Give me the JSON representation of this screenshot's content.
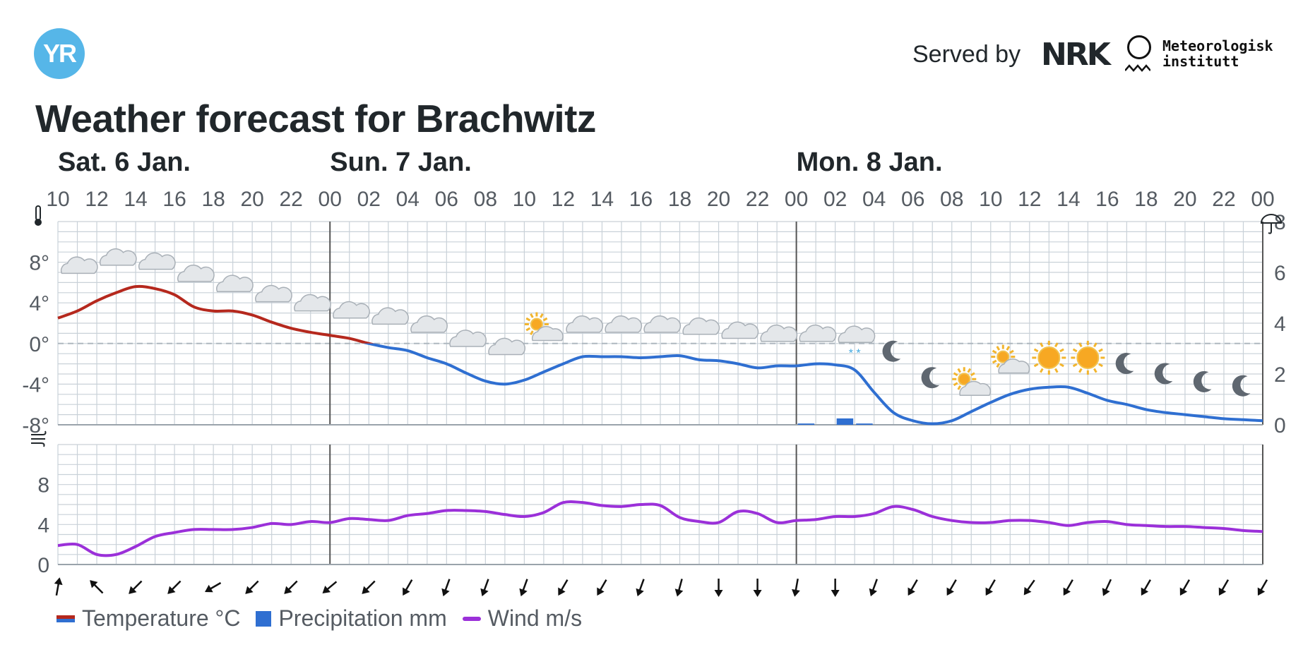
{
  "header": {
    "logo_text": "YR",
    "served_by": "Served by",
    "nrk_text": "NRK",
    "met_line1": "Meteorologisk",
    "met_line2": "institutt",
    "title": "Weather forecast for Brachwitz"
  },
  "colors": {
    "brand": "#56b6e8",
    "temp_warm": "#b5281d",
    "temp_cold": "#2f6fd1",
    "precip": "#2f6fd1",
    "wind": "#9b30d9",
    "grid": "#c9d1d8"
  },
  "legend": {
    "temperature": "Temperature °C",
    "precipitation": "Precipitation mm",
    "wind": "Wind m/s"
  },
  "chart_data": {
    "type": "line",
    "days": [
      {
        "label": "Sat. 6 Jan.",
        "start_hour": 10
      },
      {
        "label": "Sun. 7 Jan.",
        "start_hour": 0
      },
      {
        "label": "Mon. 8 Jan.",
        "start_hour": 0
      }
    ],
    "x_unit": "hours from Sat. 6 Jan. 10:00",
    "x_range": [
      0,
      62
    ],
    "hour_ticks": [
      "10",
      "12",
      "14",
      "16",
      "18",
      "20",
      "22",
      "00",
      "02",
      "04",
      "06",
      "08",
      "10",
      "12",
      "14",
      "16",
      "18",
      "20",
      "22",
      "00",
      "02",
      "04",
      "06",
      "08",
      "10",
      "12",
      "14",
      "16",
      "18",
      "20",
      "22",
      "00"
    ],
    "temperature": {
      "ylabel_icon": "thermometer-icon",
      "ylim": [
        -8,
        12
      ],
      "yticks": [
        "8°",
        "4°",
        "0°",
        "-4°",
        "-8°"
      ],
      "ytick_values": [
        8,
        4,
        0,
        -4,
        -8
      ],
      "points": [
        [
          0,
          2.5
        ],
        [
          1,
          3.2
        ],
        [
          2,
          4.2
        ],
        [
          3,
          5.0
        ],
        [
          4,
          5.6
        ],
        [
          5,
          5.4
        ],
        [
          6,
          4.8
        ],
        [
          7,
          3.6
        ],
        [
          8,
          3.2
        ],
        [
          9,
          3.2
        ],
        [
          10,
          2.8
        ],
        [
          11,
          2.1
        ],
        [
          12,
          1.5
        ],
        [
          13,
          1.1
        ],
        [
          14,
          0.8
        ],
        [
          15,
          0.5
        ],
        [
          16,
          0.0
        ],
        [
          17,
          -0.4
        ],
        [
          18,
          -0.7
        ],
        [
          19,
          -1.4
        ],
        [
          20,
          -2.0
        ],
        [
          21,
          -2.9
        ],
        [
          22,
          -3.7
        ],
        [
          23,
          -4.0
        ],
        [
          24,
          -3.6
        ],
        [
          25,
          -2.8
        ],
        [
          26,
          -2.0
        ],
        [
          27,
          -1.3
        ],
        [
          28,
          -1.3
        ],
        [
          29,
          -1.3
        ],
        [
          30,
          -1.4
        ],
        [
          31,
          -1.3
        ],
        [
          32,
          -1.2
        ],
        [
          33,
          -1.6
        ],
        [
          34,
          -1.7
        ],
        [
          35,
          -2.0
        ],
        [
          36,
          -2.4
        ],
        [
          37,
          -2.2
        ],
        [
          38,
          -2.2
        ],
        [
          39,
          -2.0
        ],
        [
          40,
          -2.1
        ],
        [
          41,
          -2.6
        ],
        [
          42,
          -4.8
        ],
        [
          43,
          -6.8
        ],
        [
          44,
          -7.6
        ],
        [
          45,
          -7.9
        ],
        [
          46,
          -7.6
        ],
        [
          47,
          -6.7
        ],
        [
          48,
          -5.8
        ],
        [
          49,
          -5.0
        ],
        [
          50,
          -4.5
        ],
        [
          51,
          -4.3
        ],
        [
          52,
          -4.3
        ],
        [
          53,
          -4.9
        ],
        [
          54,
          -5.6
        ],
        [
          55,
          -6.0
        ],
        [
          56,
          -6.5
        ],
        [
          57,
          -6.8
        ],
        [
          58,
          -7.0
        ],
        [
          59,
          -7.2
        ],
        [
          60,
          -7.4
        ],
        [
          61,
          -7.5
        ],
        [
          62,
          -7.6
        ]
      ],
      "zero_line": true
    },
    "precipitation": {
      "ylabel_icon": "umbrella-icon",
      "ylim": [
        0,
        8
      ],
      "yticks": [
        "8",
        "6",
        "4",
        "2",
        "0"
      ],
      "ytick_values": [
        8,
        6,
        4,
        2,
        0
      ],
      "bars": [
        {
          "start": 38,
          "end": 39,
          "value": 0.05
        },
        {
          "start": 40,
          "end": 41,
          "value": 0.25
        },
        {
          "start": 41,
          "end": 42,
          "value": 0.05
        }
      ]
    },
    "weather_icons": [
      {
        "hour": 1,
        "temp": 7.6,
        "symbol": "cloudy"
      },
      {
        "hour": 3,
        "temp": 8.4,
        "symbol": "cloudy"
      },
      {
        "hour": 5,
        "temp": 8.0,
        "symbol": "cloudy"
      },
      {
        "hour": 7,
        "temp": 6.8,
        "symbol": "cloudy"
      },
      {
        "hour": 9,
        "temp": 5.8,
        "symbol": "cloudy"
      },
      {
        "hour": 11,
        "temp": 4.8,
        "symbol": "cloudy"
      },
      {
        "hour": 13,
        "temp": 3.9,
        "symbol": "cloudy"
      },
      {
        "hour": 15,
        "temp": 3.2,
        "symbol": "cloudy"
      },
      {
        "hour": 17,
        "temp": 2.6,
        "symbol": "cloudy"
      },
      {
        "hour": 19,
        "temp": 1.8,
        "symbol": "cloudy"
      },
      {
        "hour": 21,
        "temp": 0.4,
        "symbol": "cloudy"
      },
      {
        "hour": 23,
        "temp": -0.4,
        "symbol": "cloudy"
      },
      {
        "hour": 25,
        "temp": 1.2,
        "symbol": "partly-cloudy-day"
      },
      {
        "hour": 27,
        "temp": 1.8,
        "symbol": "cloudy"
      },
      {
        "hour": 29,
        "temp": 1.8,
        "symbol": "cloudy"
      },
      {
        "hour": 31,
        "temp": 1.8,
        "symbol": "cloudy"
      },
      {
        "hour": 33,
        "temp": 1.6,
        "symbol": "cloudy"
      },
      {
        "hour": 35,
        "temp": 1.2,
        "symbol": "cloudy"
      },
      {
        "hour": 37,
        "temp": 0.9,
        "symbol": "cloudy"
      },
      {
        "hour": 39,
        "temp": 0.9,
        "symbol": "cloudy"
      },
      {
        "hour": 41,
        "temp": 0.8,
        "symbol": "light-snow"
      },
      {
        "hour": 43,
        "temp": -0.8,
        "symbol": "clear-night"
      },
      {
        "hour": 45,
        "temp": -3.4,
        "symbol": "clear-night"
      },
      {
        "hour": 47,
        "temp": -4.2,
        "symbol": "partly-cloudy-day"
      },
      {
        "hour": 49,
        "temp": -2.0,
        "symbol": "partly-cloudy-day"
      },
      {
        "hour": 51,
        "temp": -1.4,
        "symbol": "clear-sky"
      },
      {
        "hour": 53,
        "temp": -1.4,
        "symbol": "clear-sky"
      },
      {
        "hour": 55,
        "temp": -2.0,
        "symbol": "clear-night"
      },
      {
        "hour": 57,
        "temp": -3.0,
        "symbol": "clear-night"
      },
      {
        "hour": 59,
        "temp": -3.8,
        "symbol": "clear-night"
      },
      {
        "hour": 61,
        "temp": -4.2,
        "symbol": "clear-night"
      }
    ],
    "wind": {
      "ylabel_icon": "wind-icon",
      "ylim": [
        0,
        12
      ],
      "yticks": [
        "8",
        "4",
        "0"
      ],
      "ytick_values": [
        8,
        4,
        0
      ],
      "points": [
        [
          0,
          1.9
        ],
        [
          1,
          2.0
        ],
        [
          2,
          1.0
        ],
        [
          3,
          1.0
        ],
        [
          4,
          1.8
        ],
        [
          5,
          2.8
        ],
        [
          6,
          3.2
        ],
        [
          7,
          3.5
        ],
        [
          8,
          3.5
        ],
        [
          9,
          3.5
        ],
        [
          10,
          3.7
        ],
        [
          11,
          4.1
        ],
        [
          12,
          4.0
        ],
        [
          13,
          4.3
        ],
        [
          14,
          4.2
        ],
        [
          15,
          4.6
        ],
        [
          16,
          4.5
        ],
        [
          17,
          4.4
        ],
        [
          18,
          4.9
        ],
        [
          19,
          5.1
        ],
        [
          20,
          5.4
        ],
        [
          21,
          5.4
        ],
        [
          22,
          5.3
        ],
        [
          23,
          5.0
        ],
        [
          24,
          4.8
        ],
        [
          25,
          5.2
        ],
        [
          26,
          6.2
        ],
        [
          27,
          6.2
        ],
        [
          28,
          5.9
        ],
        [
          29,
          5.8
        ],
        [
          30,
          6.0
        ],
        [
          31,
          5.9
        ],
        [
          32,
          4.7
        ],
        [
          33,
          4.3
        ],
        [
          34,
          4.2
        ],
        [
          35,
          5.3
        ],
        [
          36,
          5.1
        ],
        [
          37,
          4.2
        ],
        [
          38,
          4.4
        ],
        [
          39,
          4.5
        ],
        [
          40,
          4.8
        ],
        [
          41,
          4.8
        ],
        [
          42,
          5.1
        ],
        [
          43,
          5.8
        ],
        [
          44,
          5.5
        ],
        [
          45,
          4.8
        ],
        [
          46,
          4.4
        ],
        [
          47,
          4.2
        ],
        [
          48,
          4.2
        ],
        [
          49,
          4.4
        ],
        [
          50,
          4.4
        ],
        [
          51,
          4.2
        ],
        [
          52,
          3.9
        ],
        [
          53,
          4.2
        ],
        [
          54,
          4.3
        ],
        [
          55,
          4.0
        ],
        [
          56,
          3.9
        ],
        [
          57,
          3.8
        ],
        [
          58,
          3.8
        ],
        [
          59,
          3.7
        ],
        [
          60,
          3.6
        ],
        [
          61,
          3.4
        ],
        [
          62,
          3.3
        ]
      ]
    },
    "wind_directions_deg_toward": [
      10,
      315,
      225,
      225,
      240,
      225,
      225,
      230,
      225,
      210,
      200,
      200,
      200,
      210,
      210,
      200,
      195,
      180,
      180,
      190,
      180,
      200,
      210,
      210,
      210,
      215,
      210,
      205,
      210,
      210,
      210,
      210,
      215
    ]
  }
}
